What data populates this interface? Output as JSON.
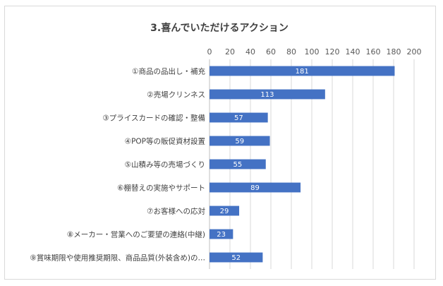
{
  "chart_data": {
    "type": "bar",
    "orientation": "horizontal",
    "title": "3.喜んでいただけるアクション",
    "xlim": [
      0,
      200
    ],
    "ticks": [
      0,
      20,
      40,
      60,
      80,
      100,
      120,
      140,
      160,
      180,
      200
    ],
    "tick_labels": [
      "0",
      "20",
      "40",
      "60",
      "80",
      "100",
      "120",
      "140",
      "160",
      "180",
      "200"
    ],
    "x_axis_position": "top",
    "grid": true,
    "bar_color": "#4472c4",
    "categories": [
      "①商品の品出し・補充",
      "②売場クリンネス",
      "③プライスカードの確認・整備",
      "④POP等の販促資材設置",
      "⑤山積み等の売場づくり",
      "⑥棚替えの実施やサポート",
      "⑦お客様への応対",
      "⑧メーカー・営業へのご要望の連絡(中継)",
      "⑨賞味期限や使用推奨期限、商品品質(外装含め)の…"
    ],
    "values": [
      181,
      113,
      57,
      59,
      55,
      89,
      29,
      23,
      52
    ],
    "value_labels": [
      "181",
      "113",
      "57",
      "59",
      "55",
      "89",
      "29",
      "23",
      "52"
    ]
  }
}
